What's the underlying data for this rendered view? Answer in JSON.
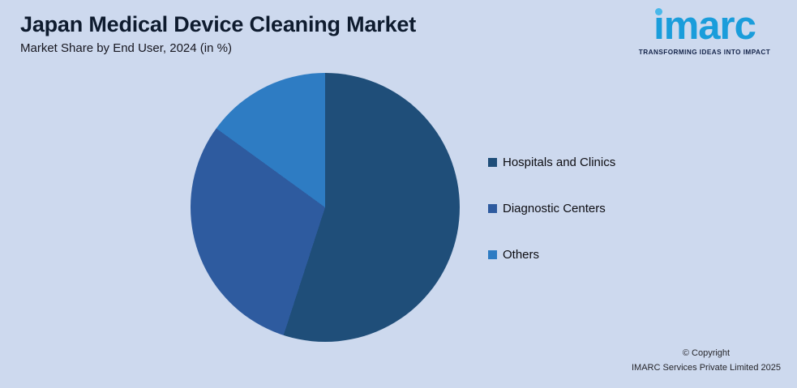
{
  "header": {
    "title": "Japan Medical Device Cleaning Market",
    "subtitle": "Market Share by End User, 2024 (in %)"
  },
  "logo": {
    "brand": "imarc",
    "brand_display_i": "ı",
    "brand_display_rest": "marc",
    "tagline": "TRANSFORMING IDEAS INTO IMPACT"
  },
  "footer": {
    "copyright_line1": "© Copyright",
    "copyright_line2": "IMARC Services Private Limited 2025"
  },
  "chart_data": {
    "type": "pie",
    "title": "Japan Medical Device Cleaning Market",
    "subtitle": "Market Share by End User, 2024 (in %)",
    "categories": [
      "Hospitals and Clinics",
      "Diagnostic Centers",
      "Others"
    ],
    "values": [
      55,
      30,
      15
    ],
    "colors": [
      "#1f4e79",
      "#2e5b9f",
      "#2e7cc3"
    ],
    "legend_position": "right",
    "start_angle_deg": 0,
    "direction": "clockwise",
    "background_color": "#cdd9ee"
  }
}
